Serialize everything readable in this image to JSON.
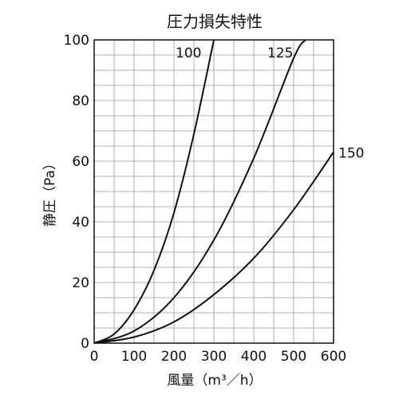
{
  "chart_data": {
    "type": "line",
    "title": "圧力損失特性",
    "xlabel": "風量（m³／h）",
    "ylabel": "静圧（Pa）",
    "xlim": [
      0,
      600
    ],
    "ylim": [
      0,
      100
    ],
    "x_ticks": [
      "0",
      "100",
      "200",
      "300",
      "400",
      "500",
      "600"
    ],
    "y_ticks": [
      "0",
      "20",
      "40",
      "60",
      "80",
      "100"
    ],
    "grid": true,
    "legend": "none (series labeled at curve ends)",
    "line_color": "#111111",
    "series": [
      {
        "name": "100",
        "x": [
          0,
          50,
          100,
          150,
          200,
          250,
          300
        ],
        "y": [
          0,
          3,
          11,
          24,
          43,
          69,
          100
        ]
      },
      {
        "name": "125",
        "x": [
          0,
          100,
          200,
          300,
          400,
          500,
          530
        ],
        "y": [
          0,
          4,
          15,
          34,
          61,
          94,
          100
        ]
      },
      {
        "name": "150",
        "x": [
          0,
          100,
          200,
          300,
          400,
          500,
          600
        ],
        "y": [
          0,
          2,
          7,
          16,
          28,
          44,
          63
        ]
      }
    ]
  }
}
